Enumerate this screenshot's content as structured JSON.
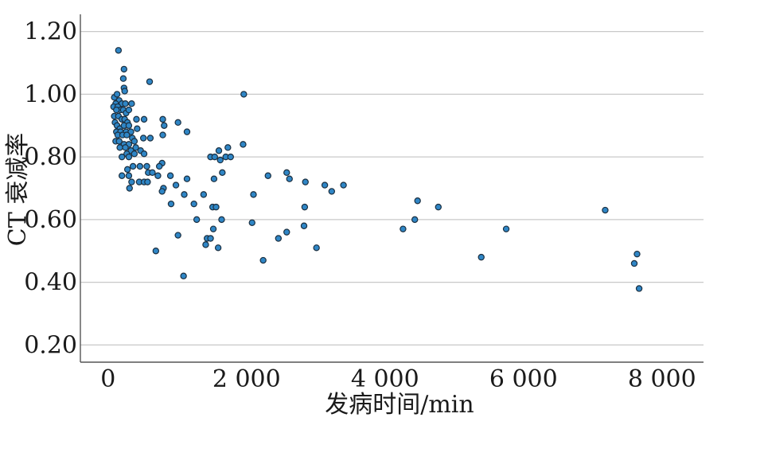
{
  "chart_data": {
    "type": "scatter",
    "xlabel": "发病时间/min",
    "ylabel": "CT 衰减率",
    "xlim": [
      -400,
      8600
    ],
    "ylim": [
      0.145,
      1.255
    ],
    "x_ticks": [
      0,
      2000,
      4000,
      6000,
      8000
    ],
    "x_tick_labels": [
      "0",
      "2 000",
      "4 000",
      "6 000",
      "8 000"
    ],
    "y_ticks": [
      0.2,
      0.4,
      0.6,
      0.8,
      1.0,
      1.2
    ],
    "y_tick_labels": [
      "0.20",
      "0.40",
      "0.60",
      "0.80",
      "1.00",
      "1.20"
    ],
    "grid": "horizontal",
    "series": [
      {
        "color": "#2f86c6",
        "points": [
          [
            150,
            1.14
          ],
          [
            230,
            1.08
          ],
          [
            220,
            1.05
          ],
          [
            230,
            1.02
          ],
          [
            240,
            1.01
          ],
          [
            600,
            1.04
          ],
          [
            1960,
            1.0
          ],
          [
            90,
            0.99
          ],
          [
            130,
            1.0
          ],
          [
            160,
            0.98
          ],
          [
            200,
            0.97
          ],
          [
            250,
            0.97
          ],
          [
            340,
            0.97
          ],
          [
            110,
            0.97
          ],
          [
            80,
            0.96
          ],
          [
            140,
            0.96
          ],
          [
            180,
            0.95
          ],
          [
            220,
            0.95
          ],
          [
            260,
            0.94
          ],
          [
            300,
            0.95
          ],
          [
            120,
            0.95
          ],
          [
            90,
            0.93
          ],
          [
            150,
            0.93
          ],
          [
            200,
            0.92
          ],
          [
            240,
            0.92
          ],
          [
            280,
            0.91
          ],
          [
            410,
            0.92
          ],
          [
            520,
            0.92
          ],
          [
            790,
            0.92
          ],
          [
            1010,
            0.91
          ],
          [
            100,
            0.91
          ],
          [
            130,
            0.9
          ],
          [
            170,
            0.89
          ],
          [
            230,
            0.9
          ],
          [
            300,
            0.9
          ],
          [
            810,
            0.9
          ],
          [
            120,
            0.88
          ],
          [
            180,
            0.88
          ],
          [
            260,
            0.88
          ],
          [
            330,
            0.88
          ],
          [
            420,
            0.89
          ],
          [
            140,
            0.87
          ],
          [
            210,
            0.87
          ],
          [
            270,
            0.87
          ],
          [
            350,
            0.86
          ],
          [
            510,
            0.86
          ],
          [
            610,
            0.86
          ],
          [
            790,
            0.87
          ],
          [
            1140,
            0.88
          ],
          [
            110,
            0.85
          ],
          [
            160,
            0.85
          ],
          [
            230,
            0.84
          ],
          [
            300,
            0.84
          ],
          [
            380,
            0.85
          ],
          [
            170,
            0.83
          ],
          [
            250,
            0.83
          ],
          [
            330,
            0.82
          ],
          [
            400,
            0.83
          ],
          [
            470,
            0.82
          ],
          [
            1950,
            0.84
          ],
          [
            1730,
            0.83
          ],
          [
            1600,
            0.82
          ],
          [
            270,
            0.81
          ],
          [
            380,
            0.81
          ],
          [
            520,
            0.81
          ],
          [
            200,
            0.8
          ],
          [
            300,
            0.8
          ],
          [
            1480,
            0.8
          ],
          [
            1540,
            0.8
          ],
          [
            1700,
            0.8
          ],
          [
            1770,
            0.8
          ],
          [
            1620,
            0.79
          ],
          [
            460,
            0.77
          ],
          [
            560,
            0.77
          ],
          [
            780,
            0.78
          ],
          [
            360,
            0.77
          ],
          [
            280,
            0.76
          ],
          [
            740,
            0.77
          ],
          [
            580,
            0.75
          ],
          [
            640,
            0.75
          ],
          [
            1650,
            0.75
          ],
          [
            2580,
            0.75
          ],
          [
            200,
            0.74
          ],
          [
            300,
            0.74
          ],
          [
            720,
            0.74
          ],
          [
            900,
            0.74
          ],
          [
            1530,
            0.73
          ],
          [
            2310,
            0.74
          ],
          [
            2620,
            0.73
          ],
          [
            340,
            0.72
          ],
          [
            450,
            0.72
          ],
          [
            520,
            0.72
          ],
          [
            570,
            0.72
          ],
          [
            1140,
            0.73
          ],
          [
            2850,
            0.72
          ],
          [
            310,
            0.7
          ],
          [
            800,
            0.7
          ],
          [
            980,
            0.71
          ],
          [
            3130,
            0.71
          ],
          [
            3400,
            0.71
          ],
          [
            780,
            0.69
          ],
          [
            1100,
            0.68
          ],
          [
            1380,
            0.68
          ],
          [
            2100,
            0.68
          ],
          [
            3230,
            0.69
          ],
          [
            910,
            0.65
          ],
          [
            1240,
            0.65
          ],
          [
            4470,
            0.66
          ],
          [
            1510,
            0.64
          ],
          [
            1560,
            0.64
          ],
          [
            2840,
            0.64
          ],
          [
            4770,
            0.64
          ],
          [
            7180,
            0.63
          ],
          [
            1280,
            0.6
          ],
          [
            1640,
            0.6
          ],
          [
            4430,
            0.6
          ],
          [
            2080,
            0.59
          ],
          [
            1520,
            0.57
          ],
          [
            2830,
            0.58
          ],
          [
            4260,
            0.57
          ],
          [
            5750,
            0.57
          ],
          [
            2580,
            0.56
          ],
          [
            1010,
            0.55
          ],
          [
            1430,
            0.54
          ],
          [
            1480,
            0.54
          ],
          [
            2460,
            0.54
          ],
          [
            1410,
            0.52
          ],
          [
            1590,
            0.51
          ],
          [
            3010,
            0.51
          ],
          [
            690,
            0.5
          ],
          [
            7640,
            0.49
          ],
          [
            5390,
            0.48
          ],
          [
            2240,
            0.47
          ],
          [
            7600,
            0.46
          ],
          [
            1090,
            0.42
          ],
          [
            7670,
            0.38
          ]
        ]
      }
    ]
  }
}
